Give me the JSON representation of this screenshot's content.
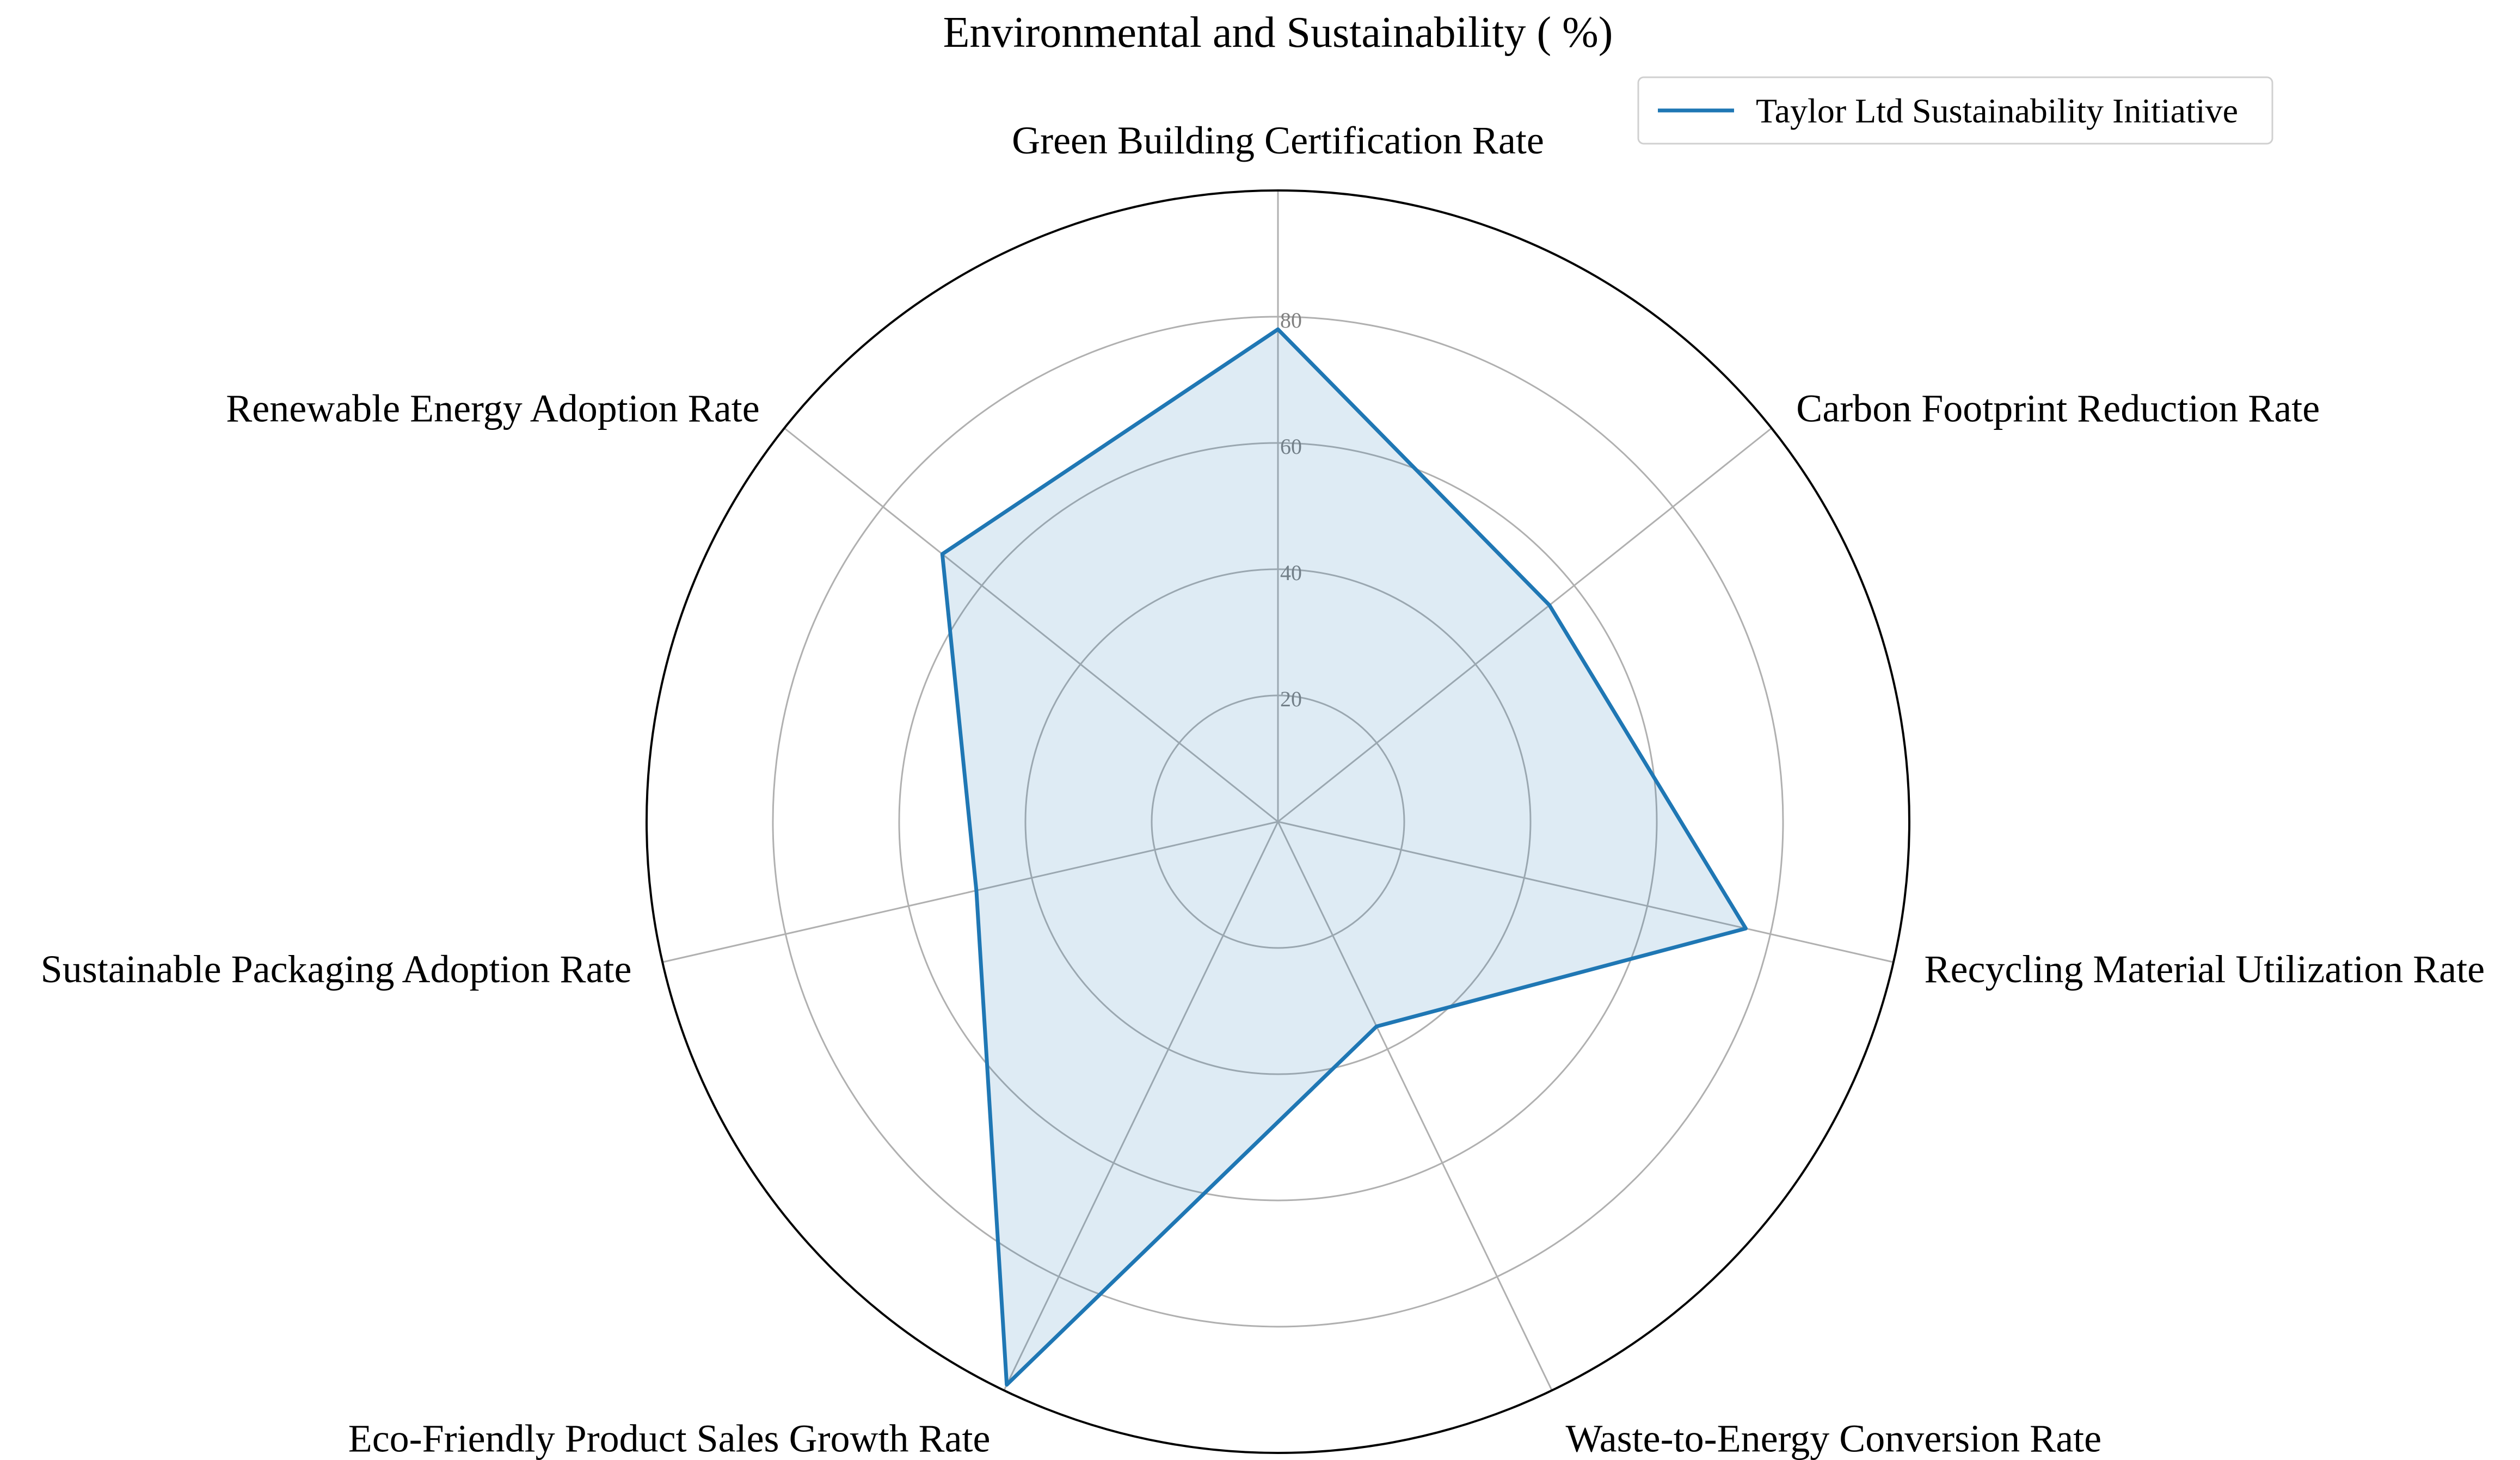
{
  "chart_data": {
    "type": "radar",
    "title": "Environmental and Sustainability ( %)",
    "categories": [
      "Green Building Certification Rate",
      "Carbon Footprint Reduction Rate",
      "Recycling Material Utilization Rate",
      "Waste-to-Energy Conversion Rate",
      "Eco-Friendly Product Sales Growth Rate",
      "Sustainable Packaging Adoption Rate",
      "Renewable Energy Adoption Rate"
    ],
    "series": [
      {
        "name": "Taylor Ltd Sustainability Initiative",
        "values": [
          78,
          55,
          76,
          36,
          99,
          49,
          68
        ],
        "color": "#1f77b4"
      }
    ],
    "rlim": [
      0,
      100
    ],
    "rticks": [
      "20",
      "40",
      "60",
      "80"
    ],
    "grid": true,
    "legend_position": "top-right"
  }
}
